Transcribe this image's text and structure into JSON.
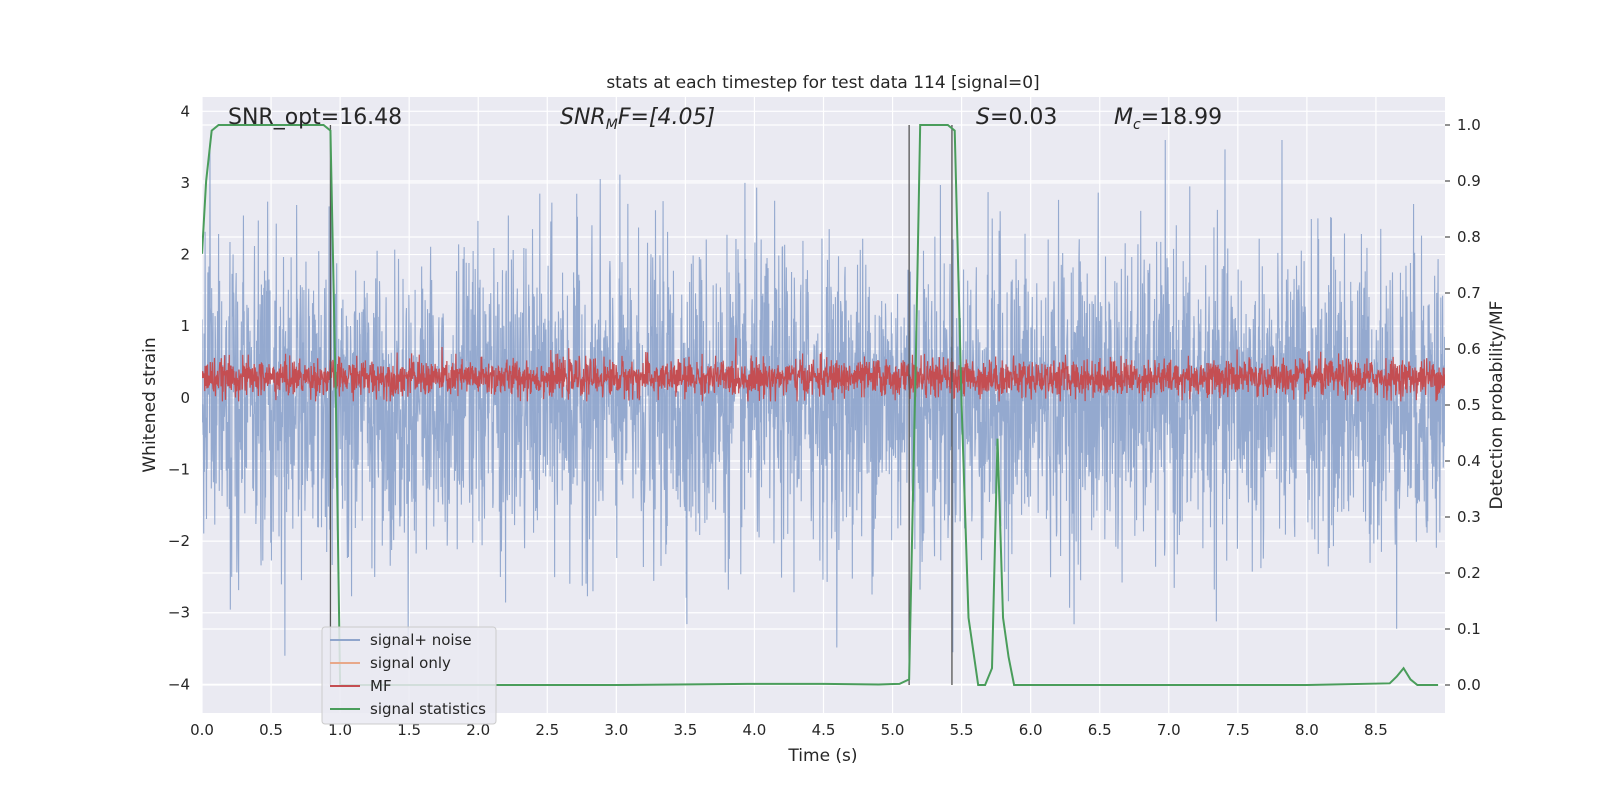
{
  "chart_data": {
    "type": "line",
    "title": "stats at each timestep for test data 114 [signal=0]",
    "xlabel": "Time (s)",
    "ylabel": "Whitened strain",
    "y2label": "Detection probability/MF",
    "xlim": [
      0,
      9
    ],
    "ylim": [
      -4.4,
      4.2
    ],
    "y2lim": [
      -0.05,
      1.05
    ],
    "xticks": [
      "0.0",
      "0.5",
      "1.0",
      "1.5",
      "2.0",
      "2.5",
      "3.0",
      "3.5",
      "4.0",
      "4.5",
      "5.0",
      "5.5",
      "6.0",
      "6.5",
      "7.0",
      "7.5",
      "8.0",
      "8.5"
    ],
    "yticks": [
      "4",
      "3",
      "2",
      "1",
      "0",
      "−1",
      "−2",
      "−3",
      "−4"
    ],
    "y2ticks": [
      "1.0",
      "0.9",
      "0.8",
      "0.7",
      "0.6",
      "0.5",
      "0.4",
      "0.3",
      "0.2",
      "0.1",
      "0.0"
    ],
    "grid": true,
    "legend_position": "lower-left",
    "annotations": {
      "snr_opt": "SNR_opt=16.48",
      "snr_mf_main": "SNR",
      "snr_mf_sub": "M",
      "snr_mf_rest": "F=[4.05]",
      "s_italic": "S",
      "s_rest": "=0.03",
      "mc_main": "M",
      "mc_sub": "c",
      "mc_rest": "=18.99"
    },
    "series": [
      {
        "name": "signal+ noise",
        "color": "#8fa5cc",
        "description_noise_amplitude": 2.0
      },
      {
        "name": "signal only",
        "color": "#e8a88a"
      },
      {
        "name": "MF",
        "color": "#c44e52",
        "baseline": 0.28
      },
      {
        "name": "signal statistics",
        "color": "#4a9d5b",
        "axis": "right",
        "x": [
          0.0,
          0.03,
          0.07,
          0.12,
          0.4,
          0.6,
          0.8,
          0.88,
          0.93,
          0.97,
          1.0,
          1.03,
          1.06,
          1.1,
          2.0,
          3.0,
          3.95,
          4.2,
          4.5,
          4.9,
          5.05,
          5.12,
          5.17,
          5.2,
          5.3,
          5.4,
          5.45,
          5.5,
          5.55,
          5.62,
          5.67,
          5.72,
          5.76,
          5.8,
          5.84,
          5.88,
          6.2,
          6.5,
          7.0,
          8.0,
          8.6,
          8.65,
          8.7,
          8.75,
          8.8,
          8.95
        ],
        "y": [
          0.77,
          0.9,
          0.99,
          1.0,
          1.0,
          1.0,
          1.0,
          1.0,
          0.99,
          0.5,
          0.0,
          0.0,
          0.0,
          0.0,
          0.0,
          0.0,
          0.002,
          0.002,
          0.002,
          0.001,
          0.002,
          0.01,
          0.6,
          1.0,
          1.0,
          1.0,
          0.99,
          0.5,
          0.12,
          0.0,
          0.0,
          0.03,
          0.44,
          0.12,
          0.05,
          0.0,
          0.0,
          0.0,
          0.0,
          0.0,
          0.003,
          0.015,
          0.03,
          0.01,
          0.0,
          0.0
        ]
      }
    ],
    "vertical_lines": [
      0.93,
      5.12,
      5.43
    ]
  }
}
